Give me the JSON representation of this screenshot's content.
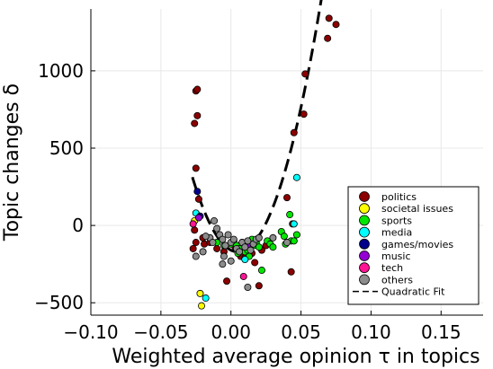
{
  "chart_data": {
    "type": "scatter",
    "xlabel": "Weighted average opinion τ in topics",
    "ylabel": "Topic changes δ",
    "xlim": [
      -0.1,
      0.18
    ],
    "ylim": [
      -580,
      1400
    ],
    "xticks": [
      -0.1,
      -0.05,
      0.0,
      0.05,
      0.1,
      0.15
    ],
    "xtick_labels": [
      "−0.10",
      "−0.05",
      "0.00",
      "0.05",
      "0.10",
      "0.15"
    ],
    "yticks": [
      -500,
      0,
      500,
      1000
    ],
    "ytick_labels": [
      "−500",
      "0",
      "500",
      "1000"
    ],
    "grid": true,
    "legend_position": "bottom-right",
    "series": [
      {
        "name": "politics",
        "color": "#8b0000",
        "points": [
          [
            -0.025,
            870
          ],
          [
            -0.024,
            880
          ],
          [
            -0.026,
            660
          ],
          [
            -0.024,
            710
          ],
          [
            -0.025,
            370
          ],
          [
            -0.023,
            170
          ],
          [
            -0.026,
            -30
          ],
          [
            -0.025,
            -110
          ],
          [
            -0.027,
            -150
          ],
          [
            -0.02,
            -80
          ],
          [
            -0.019,
            -120
          ],
          [
            -0.015,
            -110
          ],
          [
            -0.01,
            -150
          ],
          [
            -0.005,
            -170
          ],
          [
            -0.003,
            -360
          ],
          [
            0.003,
            -140
          ],
          [
            0.005,
            -160
          ],
          [
            0.007,
            -200
          ],
          [
            0.01,
            -210
          ],
          [
            0.013,
            -120
          ],
          [
            0.015,
            -180
          ],
          [
            0.017,
            -240
          ],
          [
            0.02,
            -390
          ],
          [
            0.022,
            -160
          ],
          [
            0.025,
            -130
          ],
          [
            0.04,
            180
          ],
          [
            0.043,
            -300
          ],
          [
            0.044,
            10
          ],
          [
            0.045,
            600
          ],
          [
            0.052,
            720
          ],
          [
            0.053,
            980
          ],
          [
            0.07,
            1340
          ],
          [
            0.069,
            1210
          ],
          [
            0.075,
            1300
          ]
        ]
      },
      {
        "name": "societal issues",
        "color": "#ffff00",
        "points": [
          [
            -0.022,
            -440
          ],
          [
            -0.021,
            -520
          ],
          [
            -0.026,
            30
          ]
        ]
      },
      {
        "name": "sports",
        "color": "#00e600",
        "points": [
          [
            -0.01,
            -110
          ],
          [
            -0.005,
            -130
          ],
          [
            0.0,
            -120
          ],
          [
            0.002,
            -100
          ],
          [
            0.004,
            -130
          ],
          [
            0.006,
            -150
          ],
          [
            0.008,
            -110
          ],
          [
            0.01,
            -170
          ],
          [
            0.012,
            -160
          ],
          [
            0.015,
            -90
          ],
          [
            0.016,
            -130
          ],
          [
            0.018,
            -110
          ],
          [
            0.02,
            -140
          ],
          [
            0.022,
            -290
          ],
          [
            0.026,
            -100
          ],
          [
            0.028,
            -120
          ],
          [
            0.03,
            -140
          ],
          [
            0.036,
            -40
          ],
          [
            0.038,
            -70
          ],
          [
            0.039,
            -120
          ],
          [
            0.042,
            70
          ],
          [
            0.043,
            -100
          ],
          [
            0.045,
            -100
          ],
          [
            0.047,
            -60
          ],
          [
            0.005,
            -180
          ],
          [
            0.013,
            -200
          ]
        ]
      },
      {
        "name": "media",
        "color": "#00ffff",
        "points": [
          [
            -0.018,
            -470
          ],
          [
            -0.025,
            80
          ],
          [
            0.047,
            310
          ],
          [
            0.045,
            10
          ],
          [
            0.01,
            -220
          ]
        ]
      },
      {
        "name": "games/movies",
        "color": "#00008b",
        "points": [
          [
            -0.024,
            220
          ],
          [
            -0.022,
            60
          ]
        ]
      },
      {
        "name": "music",
        "color": "#9400d3",
        "points": [
          [
            -0.023,
            50
          ],
          [
            0.012,
            -130
          ]
        ]
      },
      {
        "name": "tech",
        "color": "#ff1493",
        "points": [
          [
            0.009,
            -330
          ],
          [
            -0.027,
            10
          ]
        ]
      },
      {
        "name": "others",
        "color": "#8c8c8c",
        "points": [
          [
            -0.012,
            30
          ],
          [
            -0.01,
            -20
          ],
          [
            -0.008,
            -60
          ],
          [
            -0.006,
            -90
          ],
          [
            -0.004,
            -130
          ],
          [
            -0.002,
            -60
          ],
          [
            0.0,
            -110
          ],
          [
            0.002,
            -90
          ],
          [
            0.004,
            -150
          ],
          [
            0.006,
            -170
          ],
          [
            0.008,
            -110
          ],
          [
            0.01,
            -140
          ],
          [
            0.012,
            -100
          ],
          [
            0.014,
            -160
          ],
          [
            0.016,
            -120
          ],
          [
            0.018,
            -90
          ],
          [
            0.02,
            -80
          ],
          [
            -0.025,
            -200
          ],
          [
            -0.02,
            -170
          ],
          [
            -0.015,
            -80
          ],
          [
            -0.005,
            -200
          ],
          [
            0.03,
            -80
          ],
          [
            0.04,
            -110
          ],
          [
            0.012,
            -400
          ],
          [
            -0.006,
            -250
          ],
          [
            -0.018,
            -70
          ],
          [
            -0.013,
            -110
          ],
          [
            0.0,
            -230
          ]
        ]
      }
    ],
    "fit": {
      "name": "Quadratic Fit",
      "color": "#000000",
      "style": "dashed",
      "coefficients_a_b_c": [
        460000,
        -4520,
        -160
      ],
      "x_range": [
        -0.0275,
        0.0745
      ]
    }
  }
}
